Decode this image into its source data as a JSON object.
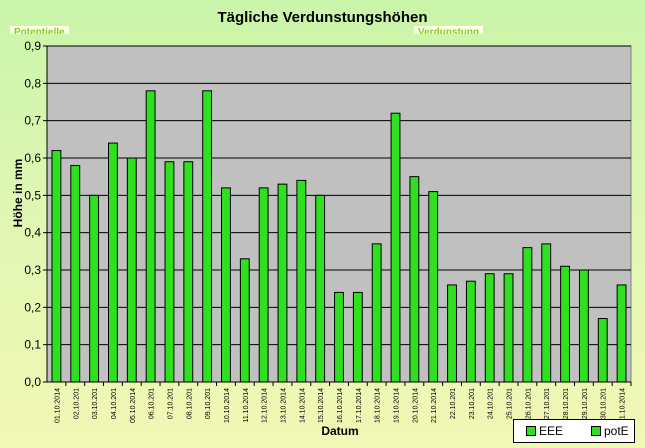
{
  "chart_data": {
    "type": "bar",
    "title": "Tägliche Verdunstungshöhen",
    "xlabel": "Datum",
    "ylabel": "Höhe in mm",
    "ylim": [
      0,
      0.9
    ],
    "yticks": [
      "0,0",
      "0,1",
      "0,2",
      "0,3",
      "0,4",
      "0,5",
      "0,6",
      "0,7",
      "0,8",
      "0,9"
    ],
    "categories": [
      "01.10.2014",
      "02.10.201",
      "03.10.201",
      "04.10.201",
      "05.10.2014",
      "06.10.201",
      "07.10.201",
      "08.10.201",
      "09.10.201",
      "10.10.2014",
      "11.10.2014",
      "12.10.2014",
      "13.10.2014",
      "14.10.2014",
      "15.10.2014",
      "16.10.2014",
      "17.10.2014",
      "18.10.2014",
      "19.10.2014",
      "20.10.2014",
      "21.10.2014",
      "22.10.201",
      "23.10.201",
      "24.10.201",
      "25.10.201",
      "26.10.201",
      "27.10.201",
      "28.10.201",
      "29.10.201",
      "30.10.201",
      "31.10.2014"
    ],
    "series": [
      {
        "name": "potE",
        "color": "#2ee01f",
        "values": [
          0.62,
          0.58,
          0.5,
          0.64,
          0.6,
          0.78,
          0.59,
          0.59,
          0.78,
          0.52,
          0.33,
          0.52,
          0.53,
          0.54,
          0.5,
          0.24,
          0.24,
          0.37,
          0.72,
          0.55,
          0.51,
          0.26,
          0.27,
          0.29,
          0.29,
          0.36,
          0.37,
          0.31,
          0.3,
          0.17,
          0.26
        ]
      }
    ],
    "legend": {
      "position": "bottom-right",
      "entries": [
        "EEE",
        "potE"
      ]
    },
    "grid": true,
    "plot_background": "#c0c0c0"
  },
  "corner_labels": {
    "left": "Potentielle",
    "right": "Verdunstung"
  }
}
